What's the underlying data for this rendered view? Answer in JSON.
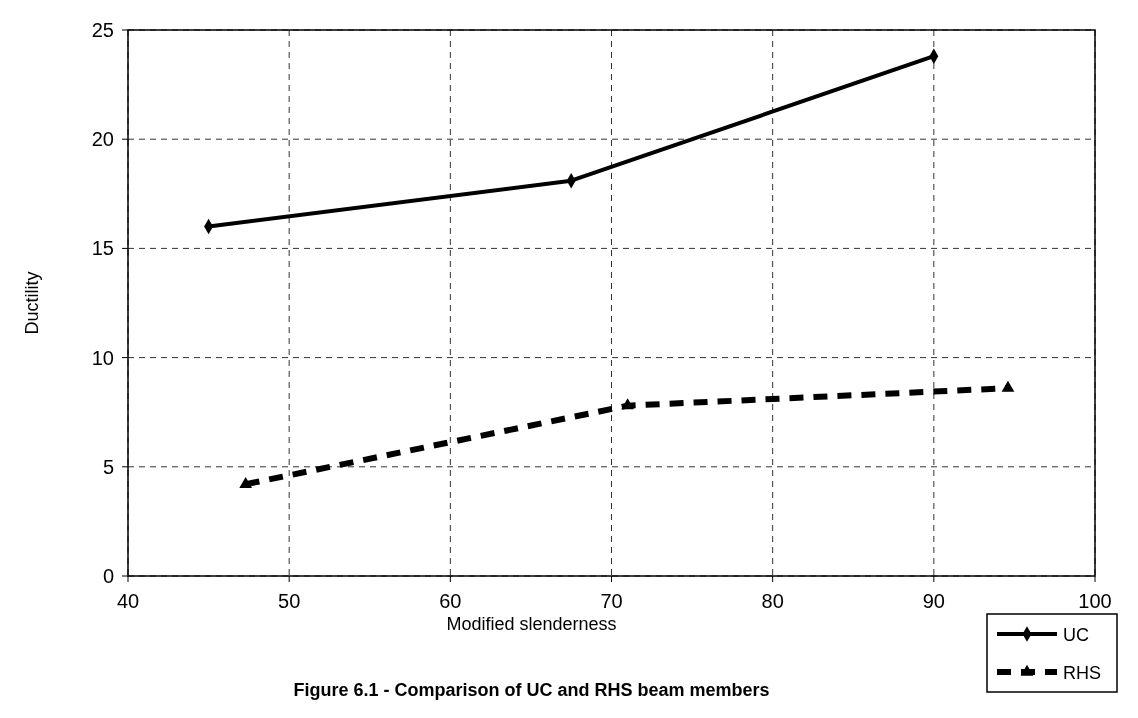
{
  "chart_data": {
    "type": "line",
    "xlabel": "Modified slenderness",
    "ylabel": "Ductility",
    "annotations": [
      "Figure 6.1 - Comparison of UC and RHS beam members"
    ],
    "xlim": [
      40,
      100
    ],
    "xticks": [
      40,
      50,
      60,
      70,
      80,
      90,
      100
    ],
    "ylim": [
      0,
      25
    ],
    "yticks": [
      0,
      5,
      10,
      15,
      20,
      25
    ],
    "grid": true,
    "legend": "bottom right",
    "series": [
      {
        "name": "UC",
        "color": "#000000",
        "marker": "diamond",
        "line_style": "solid",
        "x": [
          45,
          67.5,
          90
        ],
        "values": [
          16.0,
          18.1,
          23.8
        ]
      },
      {
        "name": "RHS",
        "color": "#000000",
        "marker": "triangle",
        "line_style": "dashed",
        "x": [
          47.3,
          71.0,
          94.6
        ],
        "values": [
          4.2,
          7.8,
          8.6
        ]
      }
    ]
  }
}
